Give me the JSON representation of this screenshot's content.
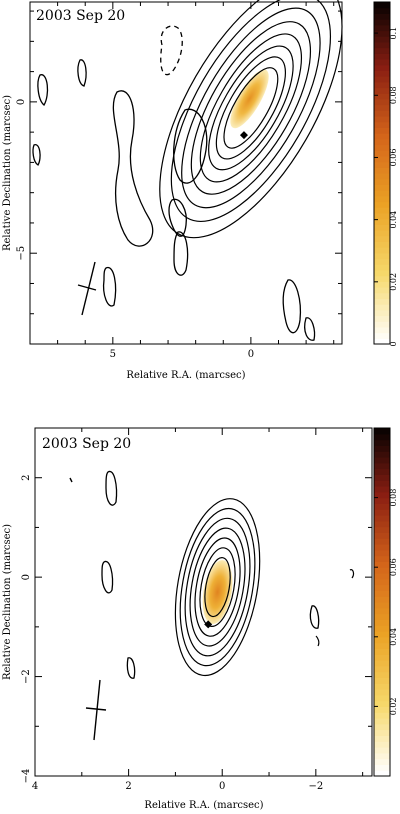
{
  "chart_data": [
    {
      "type": "heatmap",
      "title": "2003 Sep 20",
      "xlabel": "Relative R.A. (marcsec)",
      "ylabel": "Relative Declination (marcsec)",
      "xlim": [
        8.0,
        -3.3
      ],
      "ylim": [
        -8.0,
        3.3
      ],
      "x_ticks": [
        5,
        0
      ],
      "y_ticks": [
        0,
        -5
      ],
      "colorbar": {
        "range": [
          0,
          0.11
        ],
        "ticks": [
          0,
          0.02,
          0.04,
          0.06,
          0.08,
          0.1
        ],
        "labels": [
          "0",
          "0.02",
          "0.04",
          "0.06",
          "0.08",
          "0.1"
        ]
      },
      "colormap": [
        "#ffffff",
        "#f6d86a",
        "#eba225",
        "#d4651a",
        "#8a1e12",
        "#000000"
      ],
      "contours": {
        "center": [
          0,
          -0.2
        ],
        "angle_deg": 30,
        "levels": [
          [
            0.6,
            1.5
          ],
          [
            0.8,
            1.9
          ],
          [
            1.0,
            2.3
          ],
          [
            1.2,
            2.75
          ],
          [
            1.45,
            3.2
          ],
          [
            1.7,
            3.7
          ],
          [
            2.0,
            4.2
          ],
          [
            2.3,
            4.8
          ]
        ]
      },
      "core": {
        "center": [
          0.05,
          0.1
        ],
        "half_width": 0.4,
        "half_height": 1.1,
        "peak": 0.05
      },
      "points": [
        [
          0.25,
          -1.1
        ]
      ]
    },
    {
      "type": "heatmap",
      "title": "2003 Sep 20",
      "xlabel": "Relative R.A. (marcsec)",
      "ylabel": "Relative Declination (marcsec)",
      "xlim": [
        4.0,
        -3.2
      ],
      "ylim": [
        -4.0,
        3.0
      ],
      "x_ticks": [
        4,
        2,
        0,
        -2
      ],
      "y_ticks": [
        2,
        0,
        -2,
        -4
      ],
      "colorbar": {
        "range": [
          0,
          0.1
        ],
        "ticks": [
          0.02,
          0.04,
          0.06,
          0.08
        ],
        "labels": [
          "0.02",
          "0.04",
          "0.06",
          "0.08"
        ]
      },
      "colormap": [
        "#ffffff",
        "#f6d86a",
        "#eba225",
        "#d4651a",
        "#8a1e12",
        "#000000"
      ],
      "contours": {
        "center": [
          0.1,
          -0.2
        ],
        "angle_deg": 10,
        "levels": [
          [
            0.25,
            0.6
          ],
          [
            0.35,
            0.8
          ],
          [
            0.45,
            1.0
          ],
          [
            0.55,
            1.2
          ],
          [
            0.65,
            1.4
          ],
          [
            0.75,
            1.6
          ],
          [
            0.85,
            1.8
          ]
        ]
      },
      "core": {
        "center": [
          0.1,
          -0.3
        ],
        "half_width": 0.3,
        "half_height": 0.65,
        "peak": 0.05
      },
      "points": [
        [
          0.3,
          -0.95
        ]
      ]
    }
  ]
}
